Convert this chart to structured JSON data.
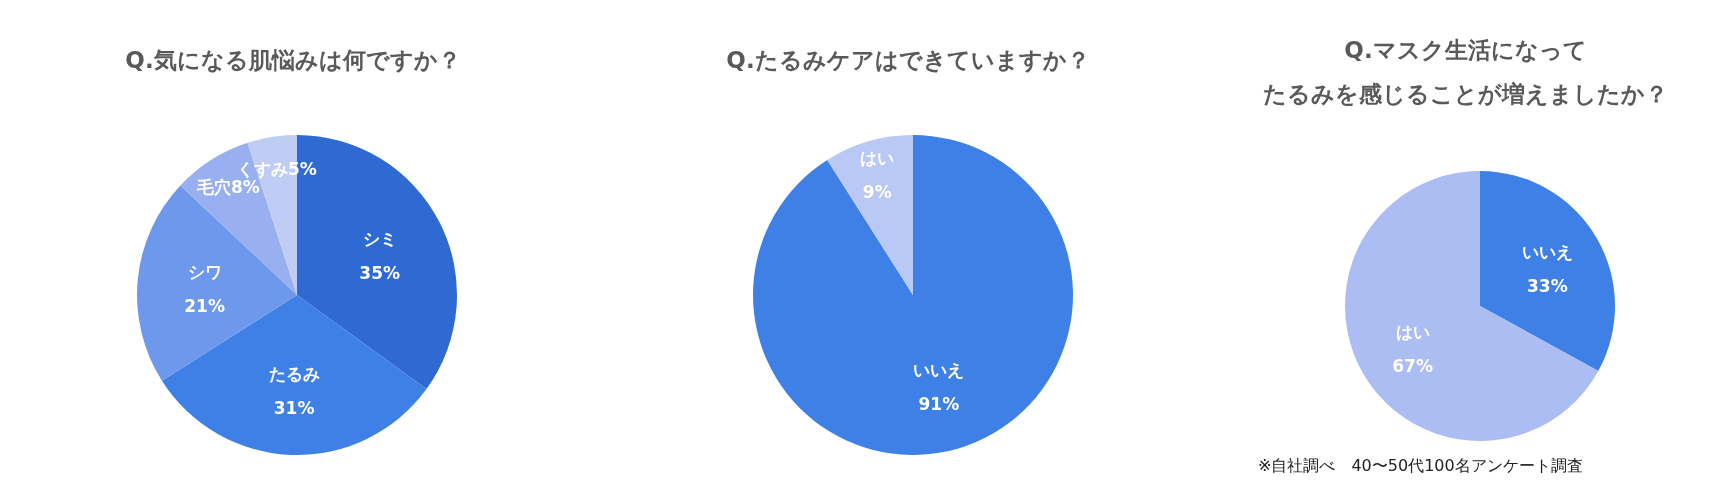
{
  "chart_data": [
    {
      "type": "pie",
      "title": "Q.気になる肌悩みは何ですか？",
      "categories": [
        "シミ",
        "たるみ",
        "シワ",
        "毛穴",
        "くすみ"
      ],
      "values": [
        35,
        31,
        21,
        8,
        5
      ],
      "value_labels": [
        "35%",
        "31%",
        "21%",
        "8%",
        "5%"
      ],
      "colors": [
        "#2f6ad3",
        "#3f80e6",
        "#6d98ec",
        "#98b0ef",
        "#bfcdf5"
      ]
    },
    {
      "type": "pie",
      "title": "Q.たるみケアはできていますか？",
      "categories": [
        "いいえ",
        "はい"
      ],
      "values": [
        91,
        9
      ],
      "value_labels": [
        "91%",
        "9%"
      ],
      "colors": [
        "#3f80e6",
        "#b9c8f4"
      ]
    },
    {
      "type": "pie",
      "title": "Q.マスク生活になってたるみを感じることが増えましたか？",
      "categories": [
        "いいえ",
        "はい"
      ],
      "values": [
        33,
        67
      ],
      "value_labels": [
        "33%",
        "67%"
      ],
      "colors": [
        "#3f80e6",
        "#abbdf2"
      ],
      "annotations": [
        "※自社調べ　40〜50代100名アンケート調査"
      ]
    }
  ]
}
